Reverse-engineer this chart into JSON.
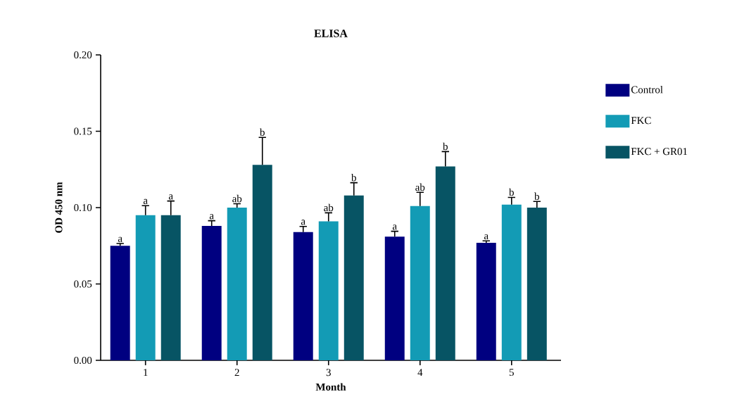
{
  "chart_data": {
    "type": "bar",
    "title": "ELISA",
    "xlabel": "Month",
    "ylabel": "OD 450 nm",
    "categories": [
      "1",
      "2",
      "3",
      "4",
      "5"
    ],
    "series": [
      {
        "name": "Control",
        "color": "#000080",
        "values": [
          0.075,
          0.088,
          0.084,
          0.081,
          0.077
        ],
        "errors": [
          0.0015,
          0.0034,
          0.0037,
          0.0035,
          0.0012
        ],
        "value_labels": [
          "a",
          "a",
          "a",
          "a",
          "a"
        ]
      },
      {
        "name": "FKC",
        "color": "#139bb5",
        "values": [
          0.095,
          0.1,
          0.091,
          0.101,
          0.102
        ],
        "errors": [
          0.0063,
          0.0025,
          0.0056,
          0.009,
          0.0047
        ],
        "value_labels": [
          "a",
          "ab",
          "ab",
          "ab",
          "b"
        ]
      },
      {
        "name": "FKC + GR01",
        "color": "#075464",
        "values": [
          0.095,
          0.128,
          0.108,
          0.127,
          0.1
        ],
        "errors": [
          0.0093,
          0.018,
          0.0083,
          0.0097,
          0.004
        ],
        "value_labels": [
          "a",
          "b",
          "b",
          "b",
          "b"
        ]
      }
    ],
    "ylim": [
      0,
      0.2
    ],
    "yticks": [
      {
        "value": 0,
        "label": "0.00"
      },
      {
        "value": 0.05,
        "label": "0.05"
      },
      {
        "value": 0.1,
        "label": "0.10"
      },
      {
        "value": 0.15,
        "label": "0.15"
      },
      {
        "value": 0.2,
        "label": "0.20"
      }
    ],
    "legend": "right"
  }
}
